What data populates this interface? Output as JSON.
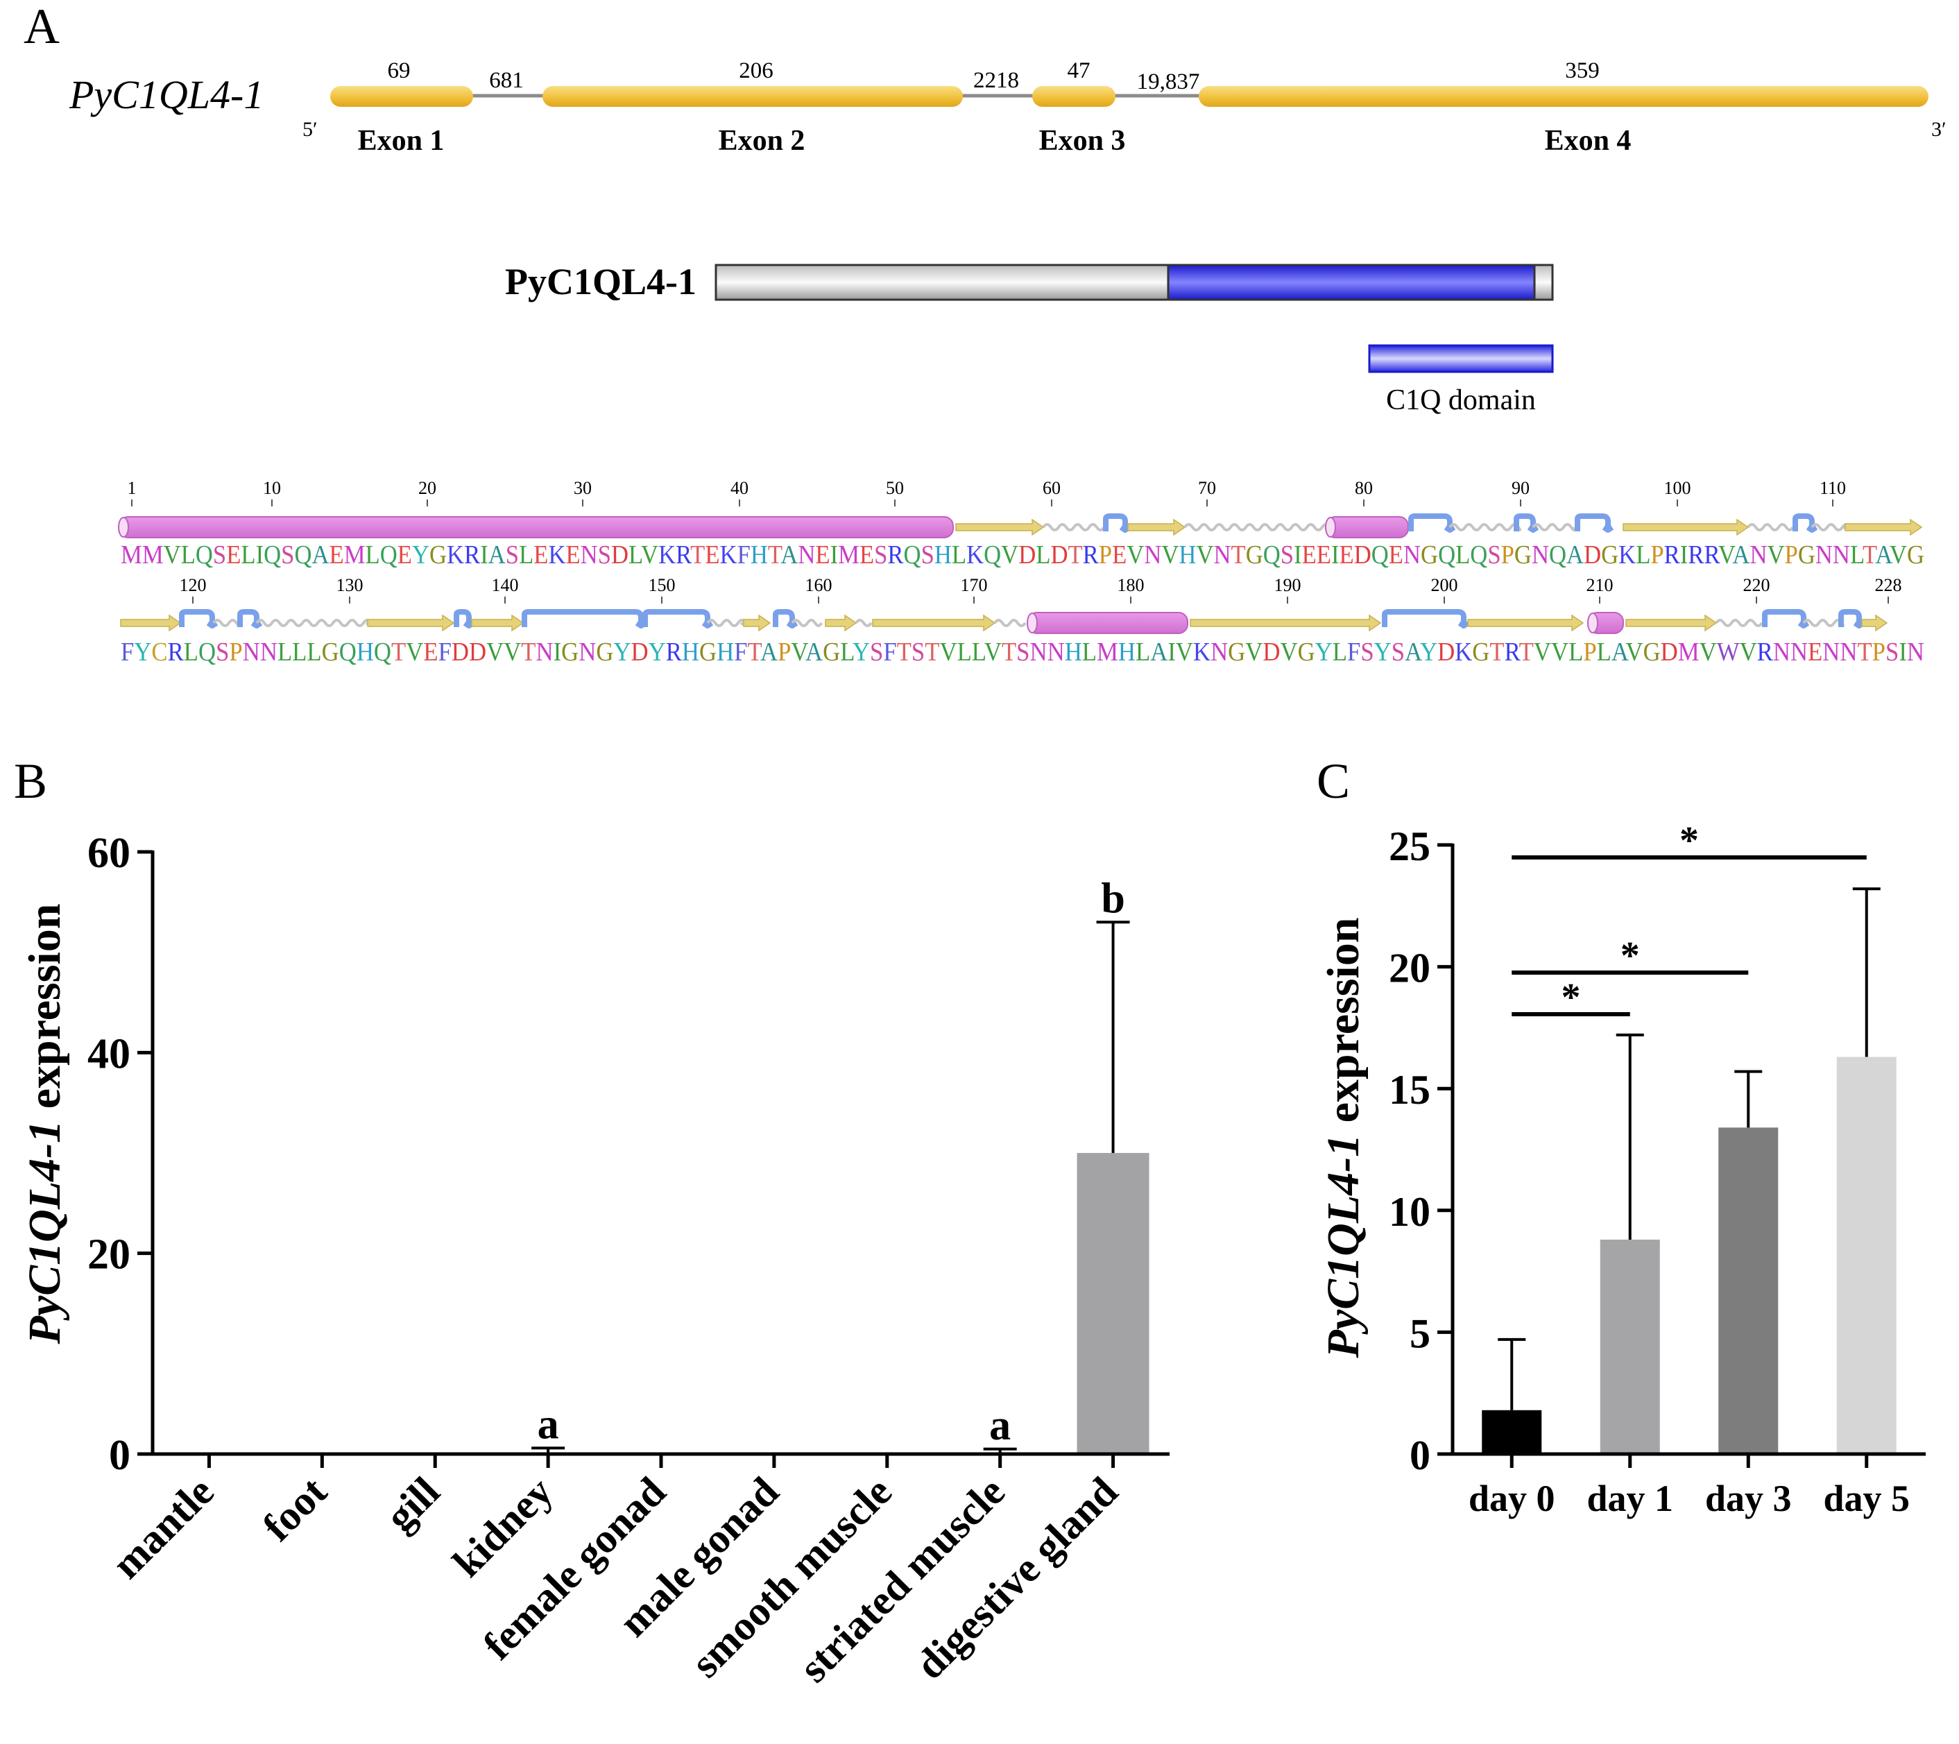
{
  "panelA": {
    "letter": "A",
    "gene_name": "PyC1QL4-1",
    "five_prime": "5′",
    "three_prime": "3′",
    "exons": [
      {
        "label": "Exon 1",
        "length": "69"
      },
      {
        "label": "Exon 2",
        "length": "206"
      },
      {
        "label": "Exon 3",
        "length": "47"
      },
      {
        "label": "Exon 4",
        "length": "359"
      }
    ],
    "introns": [
      "681",
      "2218",
      "19,837"
    ],
    "protein_label": "PyC1QL4-1",
    "domain_label": "C1Q domain",
    "seq_numbers_row1": [
      "1",
      "10",
      "20",
      "30",
      "40",
      "50",
      "60",
      "70",
      "80",
      "90",
      "100",
      "110"
    ],
    "seq_numbers_row2": [
      "120",
      "130",
      "140",
      "150",
      "160",
      "170",
      "180",
      "190",
      "200",
      "210",
      "220",
      "228"
    ],
    "seq_row1": "MMVLQSELIQSQAEMLQEYGKRIASLEKENSDLVKRTEKFHTANEIMESRQSHLKQVDLDTRPEVNVHVNTGQSIEEIEDQENGQLQSPGNQADGKLPRIRRVANVPGNNLTAVG",
    "seq_row2": "FYCRLQSPNNLLLGQHQTVEFDDVVTNIGNGYDYRHGHFTAPVAGLYSFTSTVLLVTSNNHLMHLAIVKNGVDVGYLFSYSAYDKGTRTVVLPLAVGDMVWVRNNENNTPSIN"
  },
  "panelB": {
    "letter": "B",
    "ylabel_italic": "PyC1QL4-1",
    "ylabel_rest": " expression"
  },
  "panelC": {
    "letter": "C",
    "ylabel_italic": "PyC1QL4-1",
    "ylabel_rest": " expression"
  },
  "chart_data": [
    {
      "type": "bar",
      "title": "",
      "xlabel": "",
      "ylabel": "PyC1QL4-1 expression",
      "categories": [
        "mantle",
        "foot",
        "gill",
        "kidney",
        "female gonad",
        "male gonad",
        "smooth muscle",
        "striated muscle",
        "digestive gland"
      ],
      "values": [
        0,
        0,
        0,
        0.3,
        0,
        0,
        0,
        0.3,
        30
      ],
      "error_upper": [
        0,
        0,
        0,
        0.6,
        0,
        0,
        0,
        0.5,
        53
      ],
      "significance_letters": [
        "",
        "",
        "",
        "a",
        "",
        "",
        "",
        "a",
        "b"
      ],
      "ylim": [
        0,
        60
      ],
      "yticks": [
        "0",
        "20",
        "40",
        "60"
      ],
      "bar_color": "#a3a3a6"
    },
    {
      "type": "bar",
      "title": "",
      "xlabel": "",
      "ylabel": "PyC1QL4-1 expression",
      "categories": [
        "day 0",
        "day 1",
        "day 3",
        "day 5"
      ],
      "values": [
        1.8,
        8.8,
        13.4,
        16.3
      ],
      "error_upper": [
        4.7,
        17.2,
        15.7,
        23.2
      ],
      "colors": [
        "#000000",
        "#a5a5a8",
        "#7d7d7d",
        "#d6d6d6"
      ],
      "ylim": [
        0,
        25
      ],
      "yticks": [
        "0",
        "5",
        "10",
        "15",
        "20",
        "25"
      ],
      "significance": [
        {
          "from": "day 0",
          "to": "day 1",
          "label": "*"
        },
        {
          "from": "day 0",
          "to": "day 3",
          "label": "*"
        },
        {
          "from": "day 0",
          "to": "day 5",
          "label": "*"
        }
      ]
    }
  ]
}
